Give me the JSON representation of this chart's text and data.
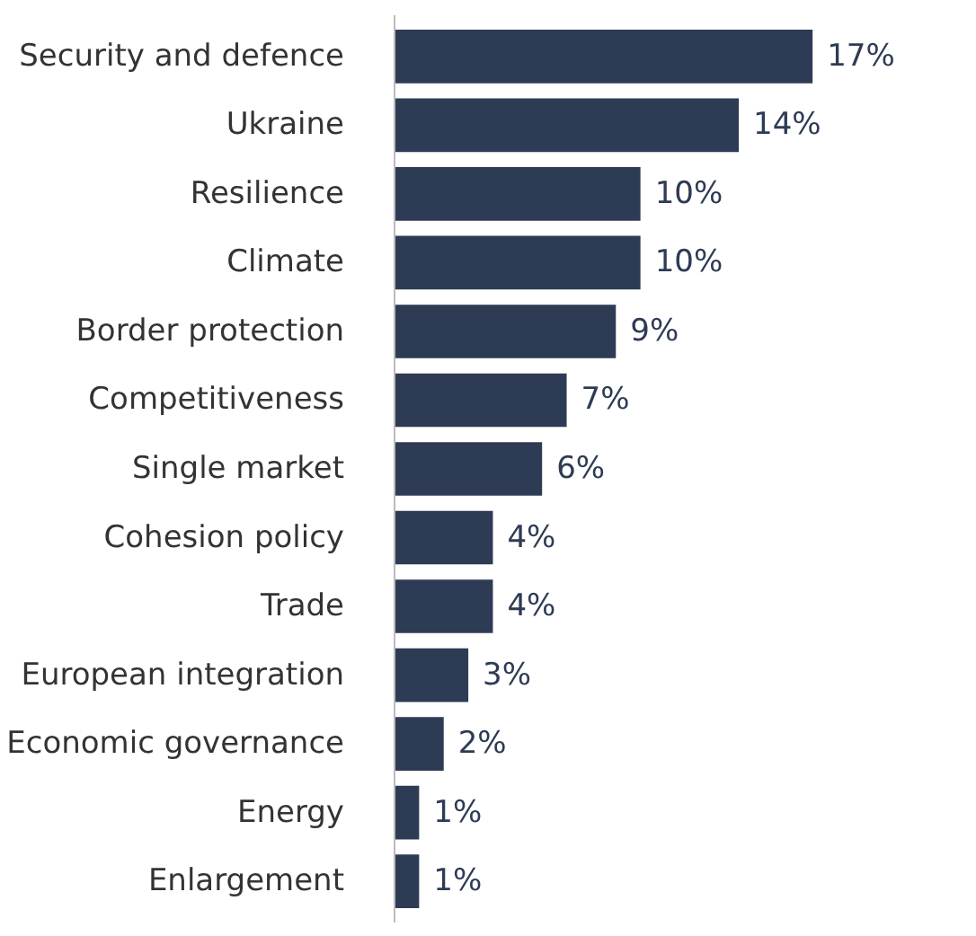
{
  "chart_data": {
    "type": "bar",
    "orientation": "horizontal",
    "categories": [
      "Security and defence",
      "Ukraine",
      "Resilience",
      "Climate",
      "Border protection",
      "Competitiveness",
      "Single market",
      "Cohesion policy",
      "Trade",
      "European integration",
      "Economic governance",
      "Energy",
      "Enlargement"
    ],
    "values": [
      17,
      14,
      10,
      10,
      9,
      7,
      6,
      4,
      4,
      3,
      2,
      1,
      1
    ],
    "value_labels": [
      "17%",
      "14%",
      "10%",
      "10%",
      "9%",
      "7%",
      "6%",
      "4%",
      "4%",
      "3%",
      "2%",
      "1%",
      "1%"
    ],
    "color": "#2e3b55",
    "grid": false,
    "tick_labels": "y"
  }
}
